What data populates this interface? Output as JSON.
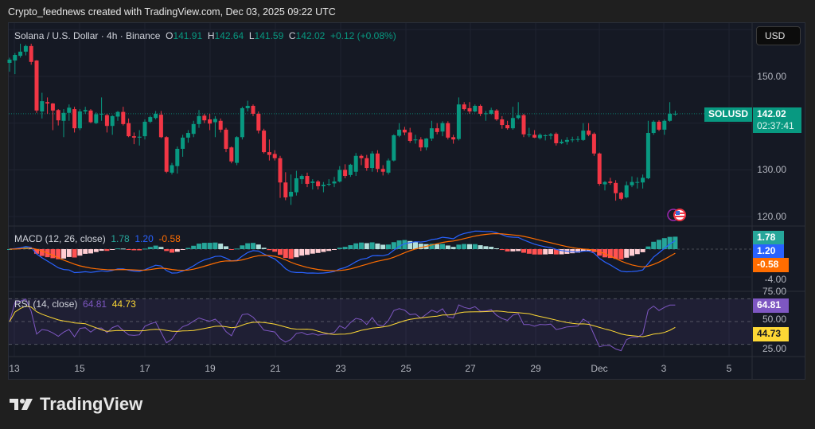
{
  "header": {
    "credit": "Crypto_feednews created with TradingView.com, Dec 03, 2025 09:22 UTC"
  },
  "legend": {
    "symbol": "Solana / U.S. Dollar · 4h · Binance",
    "o_label": "O",
    "o": "141.91",
    "h_label": "H",
    "h": "142.64",
    "l_label": "L",
    "l": "141.59",
    "c_label": "C",
    "c": "142.02",
    "change": "+0.12 (+0.08%)"
  },
  "currency_button": "USD",
  "price_axis": {
    "labels": [
      "150.00",
      "130.00",
      "120.00"
    ]
  },
  "price_badge": {
    "symbol": "SOLUSD",
    "price": "142.02",
    "countdown": "02:37:41"
  },
  "macd": {
    "title": "MACD (12, 26, close)",
    "histogram": "1.78",
    "macd": "1.20",
    "signal": "-0.58",
    "axis_label": "-4.00"
  },
  "rsi": {
    "title": "RSI (14, close)",
    "rsi": "64.81",
    "ma": "44.73",
    "axis_labels": [
      "75.00",
      "50.00",
      "25.00"
    ]
  },
  "time_axis": [
    "13",
    "15",
    "17",
    "19",
    "21",
    "23",
    "25",
    "27",
    "29",
    "Dec",
    "3",
    "5"
  ],
  "colors": {
    "up": "#089981",
    "down": "#f23645",
    "macd": "#2962ff",
    "signal": "#ff6d00",
    "hist_up": "#26a69a",
    "hist_up_fade": "#b2dfdb",
    "hist_down": "#ff5252",
    "hist_down_fade": "#ffcdd2",
    "rsi": "#7e57c2",
    "rsi_ma": "#fdd835"
  },
  "logo": {
    "text": "TradingView"
  },
  "chart_data": {
    "type": "candlestick",
    "interval": "4h",
    "ylim": [
      118,
      160
    ],
    "grid": true,
    "ohlc": [
      [
        152.9,
        154.0,
        151.0,
        153.6
      ],
      [
        153.4,
        155.0,
        150.5,
        154.6
      ],
      [
        154.4,
        157.0,
        154.0,
        155.3
      ],
      [
        155.3,
        156.8,
        154.5,
        156.5
      ],
      [
        156.5,
        157.0,
        152.5,
        153.1
      ],
      [
        153.4,
        153.5,
        142.2,
        142.7
      ],
      [
        142.5,
        146.5,
        141.0,
        144.7
      ],
      [
        144.5,
        145.5,
        142.0,
        144.2
      ],
      [
        144.2,
        144.3,
        138.5,
        142.7
      ],
      [
        142.8,
        143.0,
        139.5,
        140.6
      ],
      [
        140.5,
        143.0,
        137.0,
        142.2
      ],
      [
        142.2,
        144.0,
        140.5,
        143.3
      ],
      [
        143.0,
        143.5,
        138.0,
        138.9
      ],
      [
        138.9,
        143.0,
        138.5,
        142.5
      ],
      [
        142.5,
        143.5,
        142.0,
        142.8
      ],
      [
        142.7,
        143.0,
        140.0,
        140.2
      ],
      [
        140.0,
        142.3,
        139.8,
        141.9
      ],
      [
        141.9,
        145.5,
        140.5,
        142.0
      ],
      [
        141.7,
        142.0,
        138.0,
        139.4
      ],
      [
        139.4,
        141.7,
        137.5,
        141.5
      ],
      [
        141.4,
        142.6,
        140.5,
        142.4
      ],
      [
        142.4,
        143.5,
        139.5,
        139.8
      ],
      [
        140.0,
        141.0,
        137.0,
        137.2
      ],
      [
        137.2,
        138.0,
        135.5,
        136.9
      ],
      [
        136.9,
        138.5,
        135.2,
        137.1
      ],
      [
        137.2,
        140.8,
        136.5,
        140.3
      ],
      [
        140.3,
        141.6,
        140.0,
        141.3
      ],
      [
        141.1,
        142.6,
        140.8,
        142.0
      ],
      [
        141.8,
        142.6,
        136.8,
        137.0
      ],
      [
        137.0,
        137.2,
        129.3,
        129.6
      ],
      [
        129.4,
        131.5,
        129.0,
        131.0
      ],
      [
        130.8,
        135.0,
        129.2,
        134.5
      ],
      [
        134.5,
        137.5,
        132.8,
        136.9
      ],
      [
        136.9,
        138.5,
        135.8,
        137.9
      ],
      [
        137.7,
        140.5,
        137.0,
        139.8
      ],
      [
        139.8,
        142.8,
        139.0,
        141.5
      ],
      [
        141.6,
        142.0,
        140.0,
        140.6
      ],
      [
        140.8,
        142.0,
        138.5,
        139.9
      ],
      [
        140.2,
        141.5,
        137.0,
        140.9
      ],
      [
        140.5,
        141.0,
        138.0,
        138.6
      ],
      [
        138.6,
        139.0,
        133.8,
        134.5
      ],
      [
        134.8,
        135.0,
        131.4,
        131.8
      ],
      [
        131.5,
        137.2,
        131.0,
        137.0
      ],
      [
        137.0,
        143.5,
        136.5,
        143.2
      ],
      [
        143.2,
        144.8,
        142.5,
        143.7
      ],
      [
        143.7,
        144.0,
        141.5,
        142.0
      ],
      [
        142.0,
        142.5,
        137.8,
        138.4
      ],
      [
        138.4,
        138.8,
        133.5,
        133.8
      ],
      [
        133.8,
        136.5,
        132.0,
        133.2
      ],
      [
        133.4,
        134.2,
        132.0,
        132.5
      ],
      [
        132.5,
        133.0,
        124.0,
        127.3
      ],
      [
        127.3,
        129.5,
        123.5,
        124.1
      ],
      [
        124.3,
        129.0,
        122.5,
        125.3
      ],
      [
        125.2,
        129.8,
        124.5,
        128.2
      ],
      [
        128.0,
        129.0,
        127.0,
        128.7
      ],
      [
        128.7,
        129.4,
        126.3,
        127.0
      ],
      [
        127.2,
        128.0,
        125.8,
        127.5
      ],
      [
        127.5,
        127.8,
        125.8,
        126.5
      ],
      [
        126.5,
        127.4,
        125.2,
        126.8
      ],
      [
        127.0,
        128.0,
        126.5,
        127.0
      ],
      [
        127.1,
        128.5,
        126.3,
        127.5
      ],
      [
        127.5,
        130.8,
        127.3,
        130.0
      ],
      [
        130.0,
        131.2,
        128.2,
        128.7
      ],
      [
        128.9,
        131.3,
        128.5,
        131.1
      ],
      [
        129.6,
        133.6,
        128.7,
        133.0
      ],
      [
        133.0,
        133.3,
        131.0,
        132.5
      ],
      [
        132.5,
        133.2,
        129.8,
        130.4
      ],
      [
        130.4,
        134.0,
        129.6,
        133.5
      ],
      [
        133.5,
        134.2,
        129.5,
        130.2
      ],
      [
        130.2,
        131.0,
        128.8,
        129.6
      ],
      [
        129.4,
        132.4,
        129.0,
        132.0
      ],
      [
        132.0,
        137.6,
        131.8,
        137.4
      ],
      [
        137.3,
        140.0,
        137.0,
        138.6
      ],
      [
        138.6,
        139.2,
        137.4,
        138.0
      ],
      [
        138.0,
        139.0,
        135.8,
        136.2
      ],
      [
        136.5,
        137.5,
        135.6,
        136.5
      ],
      [
        136.5,
        137.0,
        134.0,
        134.8
      ],
      [
        134.8,
        136.8,
        134.2,
        136.7
      ],
      [
        136.7,
        140.5,
        136.2,
        138.9
      ],
      [
        138.9,
        140.0,
        137.6,
        138.1
      ],
      [
        138.2,
        140.4,
        137.2,
        140.0
      ],
      [
        140.0,
        140.4,
        136.5,
        136.9
      ],
      [
        137.0,
        137.5,
        135.6,
        136.5
      ],
      [
        136.6,
        145.5,
        136.3,
        144.0
      ],
      [
        144.0,
        144.5,
        142.7,
        143.0
      ],
      [
        143.2,
        144.5,
        142.0,
        142.5
      ],
      [
        142.5,
        144.0,
        142.3,
        143.7
      ],
      [
        143.7,
        144.0,
        141.5,
        142.0
      ],
      [
        142.1,
        142.6,
        140.5,
        142.1
      ],
      [
        142.0,
        143.3,
        141.8,
        142.8
      ],
      [
        142.7,
        143.0,
        140.5,
        140.8
      ],
      [
        140.8,
        141.5,
        138.8,
        139.6
      ],
      [
        139.6,
        140.5,
        138.6,
        138.9
      ],
      [
        138.9,
        143.5,
        138.6,
        141.1
      ],
      [
        141.1,
        144.5,
        140.8,
        141.7
      ],
      [
        141.7,
        142.0,
        137.0,
        137.6
      ],
      [
        137.6,
        139.0,
        137.0,
        137.6
      ],
      [
        137.5,
        138.5,
        136.8,
        136.9
      ],
      [
        136.8,
        137.8,
        136.5,
        137.5
      ],
      [
        137.4,
        137.6,
        136.3,
        137.4
      ],
      [
        137.3,
        137.9,
        136.5,
        137.6
      ],
      [
        137.7,
        138.0,
        135.2,
        135.7
      ],
      [
        135.7,
        136.5,
        135.5,
        136.0
      ],
      [
        136.0,
        137.0,
        135.4,
        136.4
      ],
      [
        136.4,
        137.1,
        135.9,
        136.5
      ],
      [
        136.5,
        137.2,
        136.0,
        136.6
      ],
      [
        136.4,
        140.0,
        136.2,
        138.4
      ],
      [
        138.4,
        140.0,
        137.2,
        137.5
      ],
      [
        137.7,
        138.0,
        133.0,
        133.5
      ],
      [
        133.5,
        133.7,
        126.6,
        127.0
      ],
      [
        126.9,
        127.6,
        125.6,
        127.4
      ],
      [
        127.5,
        128.3,
        126.8,
        127.2
      ],
      [
        127.2,
        127.8,
        123.4,
        125.0
      ],
      [
        125.1,
        125.3,
        123.5,
        123.8
      ],
      [
        124.1,
        127.5,
        123.9,
        126.7
      ],
      [
        126.7,
        128.6,
        126.3,
        127.4
      ],
      [
        127.4,
        128.4,
        126.0,
        127.4
      ],
      [
        127.3,
        129.0,
        126.0,
        128.3
      ],
      [
        128.2,
        140.5,
        128.0,
        137.9
      ],
      [
        137.9,
        140.6,
        137.5,
        140.3
      ],
      [
        140.3,
        140.6,
        138.3,
        138.6
      ],
      [
        138.6,
        140.8,
        137.5,
        140.5
      ],
      [
        140.5,
        144.5,
        140.3,
        142.0
      ],
      [
        141.91,
        142.64,
        141.59,
        142.02
      ]
    ]
  }
}
